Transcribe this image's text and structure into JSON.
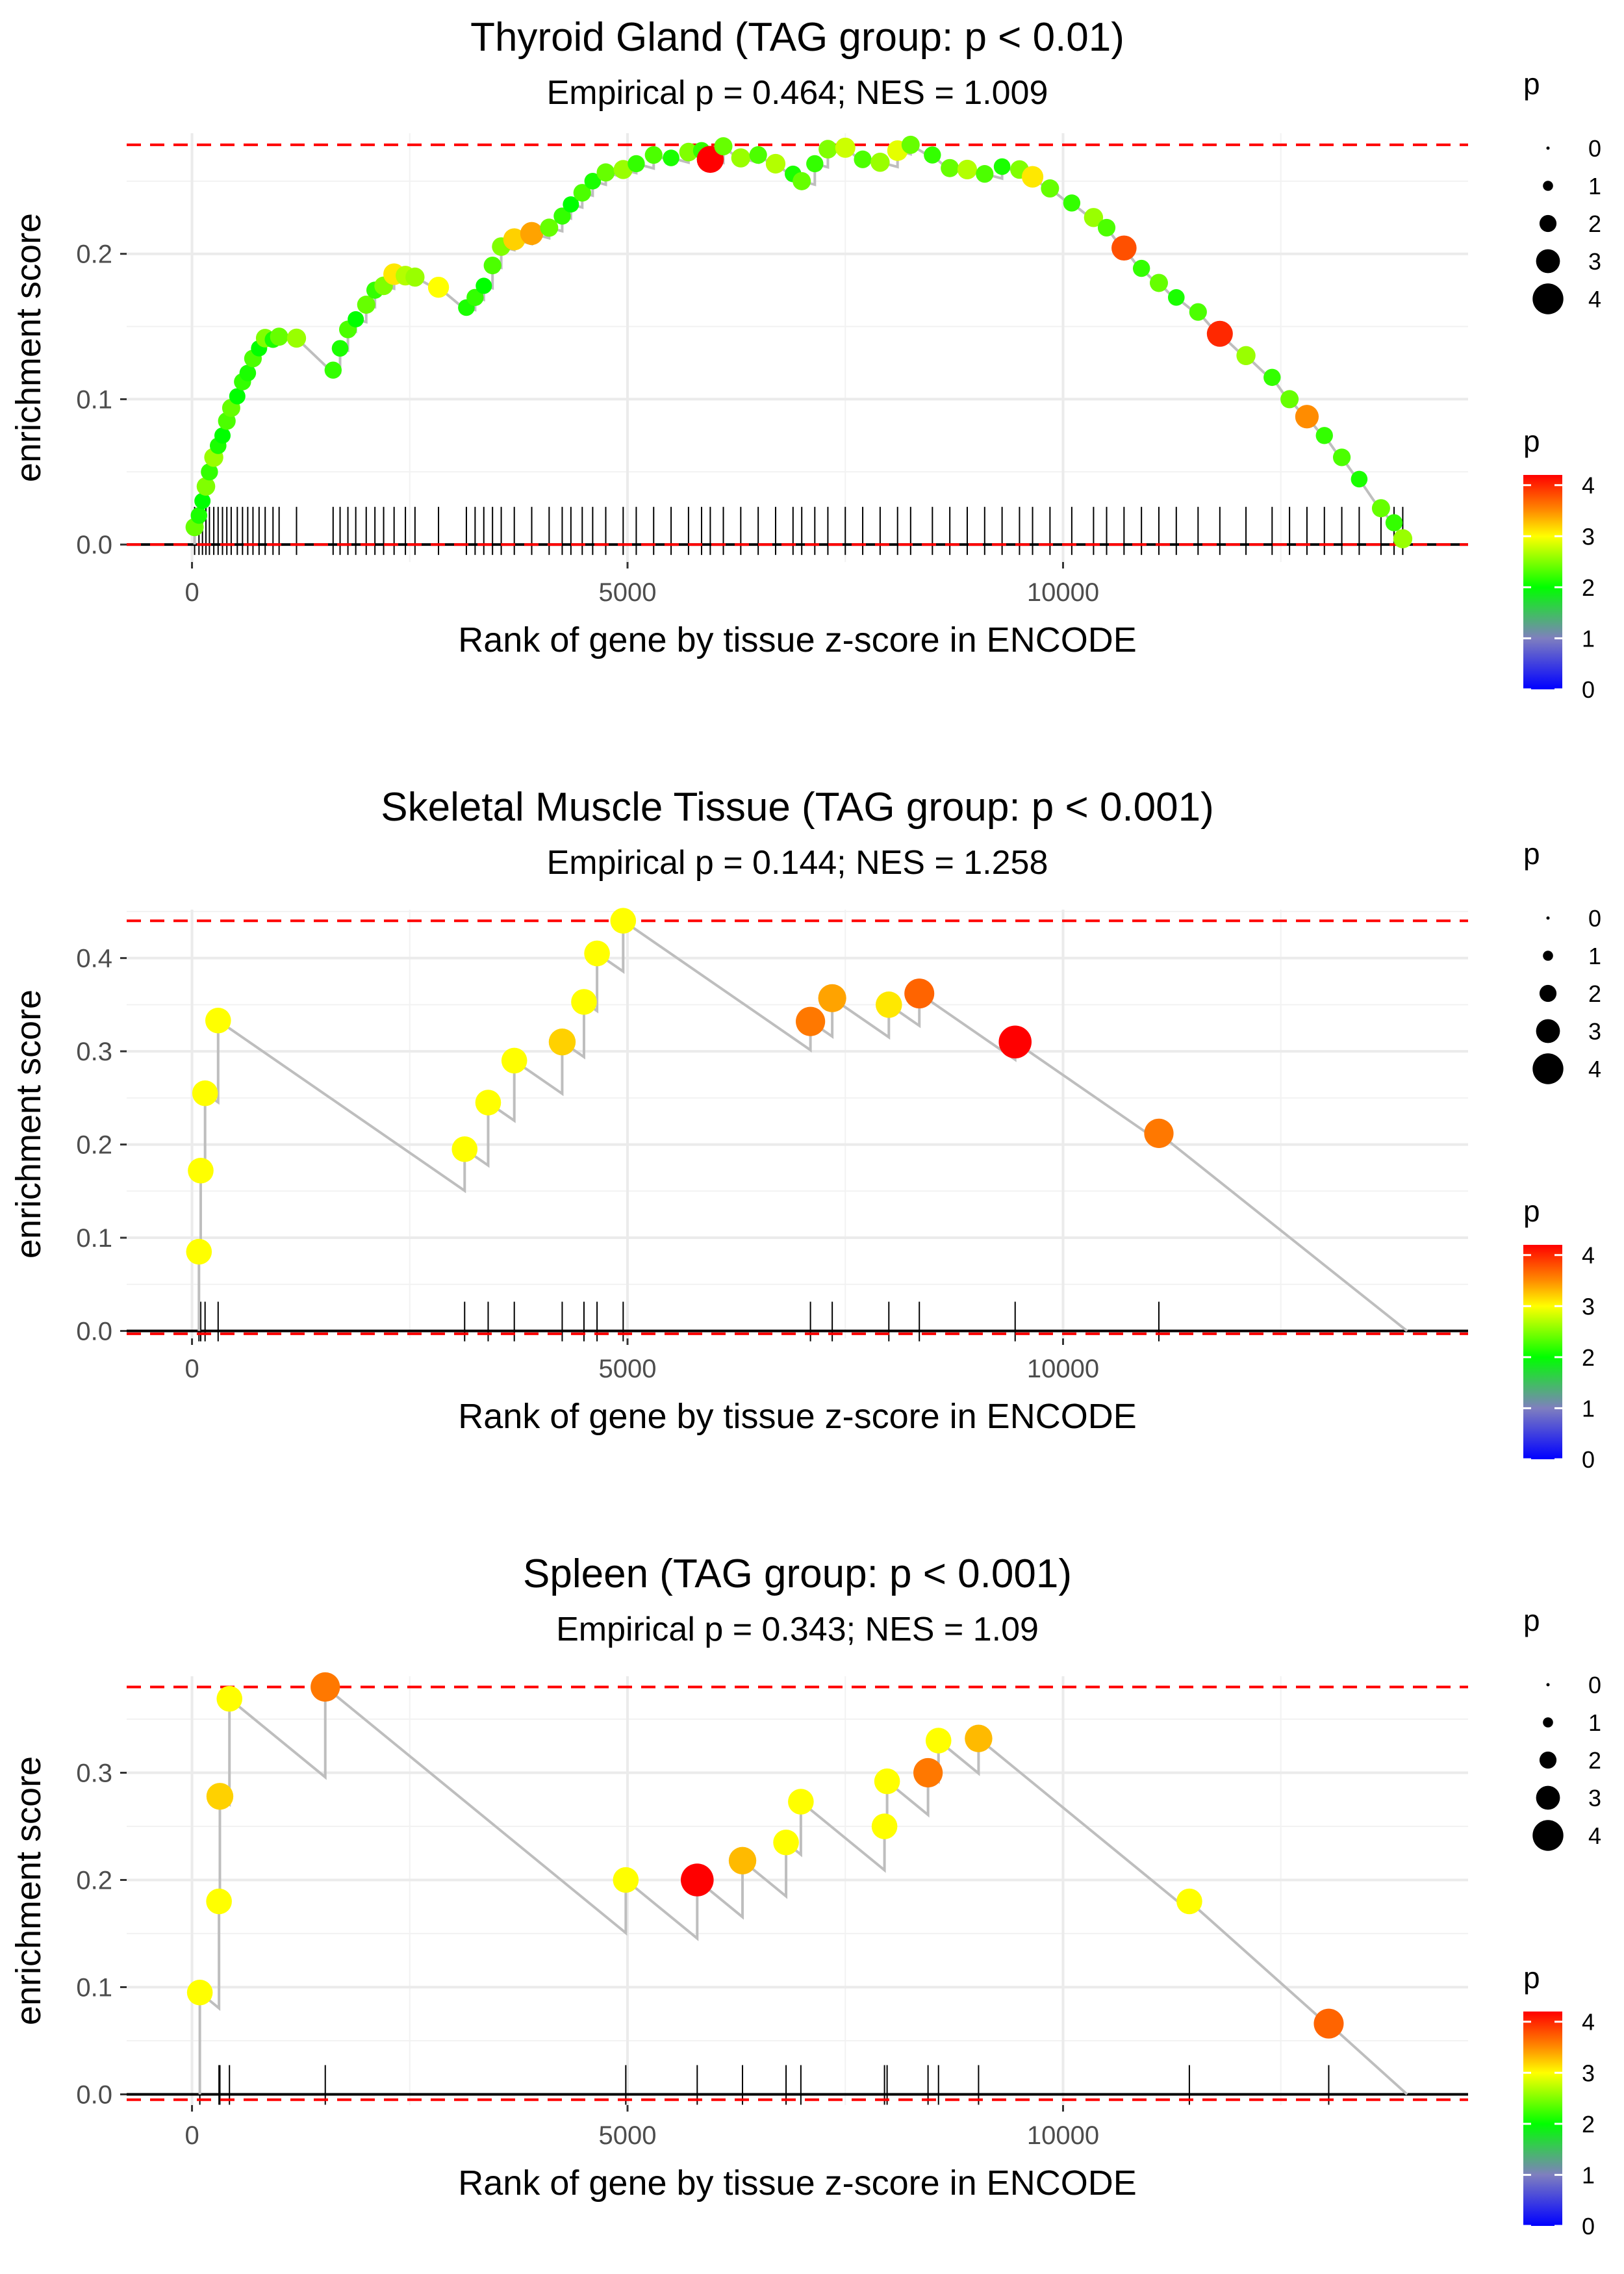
{
  "chart_data": [
    {
      "type": "scatter",
      "title": "Thyroid Gland (TAG group: p < 0.01)",
      "subtitle": "Empirical p = 0.464; NES = 1.009",
      "xlabel": "Rank of gene by tissue z-score in ENCODE",
      "ylabel": "enrichment score",
      "xlim": [
        -750,
        14650
      ],
      "ylim": [
        -0.012,
        0.283
      ],
      "xticks": [
        0,
        5000,
        10000
      ],
      "xtick_labels": [
        "0",
        "5000",
        "10000"
      ],
      "yticks": [
        0.0,
        0.1,
        0.2
      ],
      "ytick_labels": [
        "0.0",
        "0.1",
        "0.2"
      ],
      "max_es_line": 0.275,
      "min_es_line": 0.0,
      "last_rank": 13900,
      "legend_size": {
        "title": "p",
        "labels": [
          "0",
          "1",
          "2",
          "3",
          "4"
        ]
      },
      "legend_color": {
        "title": "p",
        "labels": [
          "4",
          "3",
          "2",
          "1",
          "0"
        ],
        "colors": [
          "#0000ff",
          "#7f7fbf",
          "#00ff00",
          "#ffff00",
          "#ff8000",
          "#ff0000"
        ]
      },
      "points": [
        {
          "x": 30,
          "y": 0.012,
          "p": 2.4
        },
        {
          "x": 80,
          "y": 0.02,
          "p": 2.1
        },
        {
          "x": 120,
          "y": 0.03,
          "p": 2.0
        },
        {
          "x": 160,
          "y": 0.04,
          "p": 2.5
        },
        {
          "x": 200,
          "y": 0.05,
          "p": 2.2
        },
        {
          "x": 250,
          "y": 0.06,
          "p": 2.6
        },
        {
          "x": 300,
          "y": 0.068,
          "p": 2.1
        },
        {
          "x": 350,
          "y": 0.075,
          "p": 2.0
        },
        {
          "x": 400,
          "y": 0.085,
          "p": 2.3
        },
        {
          "x": 450,
          "y": 0.094,
          "p": 2.4
        },
        {
          "x": 520,
          "y": 0.102,
          "p": 2.0
        },
        {
          "x": 580,
          "y": 0.112,
          "p": 2.2
        },
        {
          "x": 640,
          "y": 0.118,
          "p": 2.1
        },
        {
          "x": 700,
          "y": 0.128,
          "p": 2.3
        },
        {
          "x": 770,
          "y": 0.135,
          "p": 2.0
        },
        {
          "x": 840,
          "y": 0.142,
          "p": 2.5
        },
        {
          "x": 930,
          "y": 0.141,
          "p": 2.1
        },
        {
          "x": 1000,
          "y": 0.143,
          "p": 2.4
        },
        {
          "x": 1200,
          "y": 0.142,
          "p": 2.6
        },
        {
          "x": 1620,
          "y": 0.12,
          "p": 2.2
        },
        {
          "x": 1700,
          "y": 0.135,
          "p": 2.1
        },
        {
          "x": 1790,
          "y": 0.148,
          "p": 2.3
        },
        {
          "x": 1880,
          "y": 0.155,
          "p": 2.0
        },
        {
          "x": 2000,
          "y": 0.165,
          "p": 2.4
        },
        {
          "x": 2100,
          "y": 0.175,
          "p": 2.2
        },
        {
          "x": 2200,
          "y": 0.178,
          "p": 2.5
        },
        {
          "x": 2320,
          "y": 0.186,
          "p": 3.1
        },
        {
          "x": 2450,
          "y": 0.185,
          "p": 2.7
        },
        {
          "x": 2560,
          "y": 0.184,
          "p": 2.6
        },
        {
          "x": 2830,
          "y": 0.177,
          "p": 3.0
        },
        {
          "x": 3150,
          "y": 0.163,
          "p": 2.1
        },
        {
          "x": 3250,
          "y": 0.17,
          "p": 2.2
        },
        {
          "x": 3350,
          "y": 0.178,
          "p": 2.0
        },
        {
          "x": 3450,
          "y": 0.192,
          "p": 2.3
        },
        {
          "x": 3550,
          "y": 0.205,
          "p": 2.5
        },
        {
          "x": 3700,
          "y": 0.21,
          "p": 3.2
        },
        {
          "x": 3900,
          "y": 0.214,
          "p": 3.4
        },
        {
          "x": 4100,
          "y": 0.218,
          "p": 2.4
        },
        {
          "x": 4250,
          "y": 0.226,
          "p": 2.2
        },
        {
          "x": 4350,
          "y": 0.234,
          "p": 2.0
        },
        {
          "x": 4480,
          "y": 0.242,
          "p": 2.3
        },
        {
          "x": 4600,
          "y": 0.25,
          "p": 2.1
        },
        {
          "x": 4750,
          "y": 0.256,
          "p": 2.4
        },
        {
          "x": 4950,
          "y": 0.258,
          "p": 2.6
        },
        {
          "x": 5100,
          "y": 0.262,
          "p": 2.2
        },
        {
          "x": 5300,
          "y": 0.268,
          "p": 2.3
        },
        {
          "x": 5500,
          "y": 0.266,
          "p": 2.1
        },
        {
          "x": 5700,
          "y": 0.27,
          "p": 2.5
        },
        {
          "x": 5850,
          "y": 0.271,
          "p": 2.2
        },
        {
          "x": 5950,
          "y": 0.265,
          "p": 4.2
        },
        {
          "x": 6100,
          "y": 0.274,
          "p": 2.4
        },
        {
          "x": 6300,
          "y": 0.266,
          "p": 2.6
        },
        {
          "x": 6500,
          "y": 0.268,
          "p": 2.3
        },
        {
          "x": 6700,
          "y": 0.262,
          "p": 2.7
        },
        {
          "x": 6900,
          "y": 0.255,
          "p": 2.1
        },
        {
          "x": 7000,
          "y": 0.25,
          "p": 2.4
        },
        {
          "x": 7150,
          "y": 0.262,
          "p": 2.2
        },
        {
          "x": 7300,
          "y": 0.272,
          "p": 2.5
        },
        {
          "x": 7500,
          "y": 0.273,
          "p": 2.8
        },
        {
          "x": 7700,
          "y": 0.265,
          "p": 2.3
        },
        {
          "x": 7900,
          "y": 0.263,
          "p": 2.6
        },
        {
          "x": 8100,
          "y": 0.271,
          "p": 2.9
        },
        {
          "x": 8250,
          "y": 0.275,
          "p": 2.4
        },
        {
          "x": 8500,
          "y": 0.268,
          "p": 2.2
        },
        {
          "x": 8700,
          "y": 0.259,
          "p": 2.4
        },
        {
          "x": 8900,
          "y": 0.258,
          "p": 2.7
        },
        {
          "x": 9100,
          "y": 0.255,
          "p": 2.3
        },
        {
          "x": 9300,
          "y": 0.26,
          "p": 2.1
        },
        {
          "x": 9500,
          "y": 0.258,
          "p": 2.5
        },
        {
          "x": 9650,
          "y": 0.253,
          "p": 3.1
        },
        {
          "x": 9850,
          "y": 0.245,
          "p": 2.4
        },
        {
          "x": 10100,
          "y": 0.235,
          "p": 2.2
        },
        {
          "x": 10350,
          "y": 0.225,
          "p": 2.6
        },
        {
          "x": 10500,
          "y": 0.218,
          "p": 2.3
        },
        {
          "x": 10700,
          "y": 0.204,
          "p": 3.8
        },
        {
          "x": 10900,
          "y": 0.19,
          "p": 2.2
        },
        {
          "x": 11100,
          "y": 0.18,
          "p": 2.4
        },
        {
          "x": 11300,
          "y": 0.17,
          "p": 2.1
        },
        {
          "x": 11550,
          "y": 0.16,
          "p": 2.3
        },
        {
          "x": 11800,
          "y": 0.145,
          "p": 4.0
        },
        {
          "x": 12100,
          "y": 0.13,
          "p": 2.6
        },
        {
          "x": 12400,
          "y": 0.115,
          "p": 2.2
        },
        {
          "x": 12600,
          "y": 0.1,
          "p": 2.4
        },
        {
          "x": 12800,
          "y": 0.088,
          "p": 3.5
        },
        {
          "x": 13000,
          "y": 0.075,
          "p": 2.2
        },
        {
          "x": 13200,
          "y": 0.06,
          "p": 2.3
        },
        {
          "x": 13400,
          "y": 0.045,
          "p": 2.1
        },
        {
          "x": 13650,
          "y": 0.025,
          "p": 2.4
        },
        {
          "x": 13800,
          "y": 0.015,
          "p": 2.2
        },
        {
          "x": 13900,
          "y": 0.004,
          "p": 2.6
        }
      ]
    },
    {
      "type": "scatter",
      "title": "Skeletal Muscle Tissue (TAG group: p < 0.001)",
      "subtitle": "Empirical p = 0.144; NES = 1.258",
      "xlabel": "Rank of gene by tissue z-score in ENCODE",
      "ylabel": "enrichment score",
      "xlim": [
        -750,
        14650
      ],
      "ylim": [
        -0.008,
        0.452
      ],
      "xticks": [
        0,
        5000,
        10000
      ],
      "xtick_labels": [
        "0",
        "5000",
        "10000"
      ],
      "yticks": [
        0.0,
        0.1,
        0.2,
        0.3,
        0.4
      ],
      "ytick_labels": [
        "0.0",
        "0.1",
        "0.2",
        "0.3",
        "0.4"
      ],
      "max_es_line": 0.44,
      "min_es_line": -0.003,
      "last_rank": 13950,
      "legend_size": {
        "title": "p",
        "labels": [
          "0",
          "1",
          "2",
          "3",
          "4"
        ]
      },
      "legend_color": {
        "title": "p",
        "labels": [
          "4",
          "3",
          "2",
          "1",
          "0"
        ],
        "colors": [
          "#0000ff",
          "#7f7fbf",
          "#00ff00",
          "#ffff00",
          "#ff8000",
          "#ff0000"
        ]
      },
      "points": [
        {
          "x": 80,
          "y": 0.085,
          "p": 3.0
        },
        {
          "x": 100,
          "y": 0.172,
          "p": 3.0
        },
        {
          "x": 150,
          "y": 0.255,
          "p": 3.0
        },
        {
          "x": 300,
          "y": 0.333,
          "p": 3.0
        },
        {
          "x": 3130,
          "y": 0.195,
          "p": 3.0
        },
        {
          "x": 3400,
          "y": 0.245,
          "p": 3.0
        },
        {
          "x": 3700,
          "y": 0.29,
          "p": 3.0
        },
        {
          "x": 4250,
          "y": 0.31,
          "p": 3.2
        },
        {
          "x": 4500,
          "y": 0.353,
          "p": 3.0
        },
        {
          "x": 4650,
          "y": 0.405,
          "p": 3.0
        },
        {
          "x": 4950,
          "y": 0.44,
          "p": 3.0
        },
        {
          "x": 7100,
          "y": 0.332,
          "p": 3.6
        },
        {
          "x": 7350,
          "y": 0.357,
          "p": 3.4
        },
        {
          "x": 8000,
          "y": 0.35,
          "p": 3.1
        },
        {
          "x": 8350,
          "y": 0.362,
          "p": 3.7
        },
        {
          "x": 9450,
          "y": 0.31,
          "p": 4.2
        },
        {
          "x": 11100,
          "y": 0.212,
          "p": 3.6
        }
      ]
    },
    {
      "type": "scatter",
      "title": "Spleen (TAG group: p < 0.001)",
      "subtitle": "Empirical p = 0.343; NES = 1.09",
      "xlabel": "Rank of gene by tissue z-score in ENCODE",
      "ylabel": "enrichment score",
      "xlim": [
        -750,
        14650
      ],
      "ylim": [
        -0.01,
        0.39
      ],
      "xticks": [
        0,
        5000,
        10000
      ],
      "xtick_labels": [
        "0",
        "5000",
        "10000"
      ],
      "yticks": [
        0.0,
        0.1,
        0.2,
        0.3
      ],
      "ytick_labels": [
        "0.0",
        "0.1",
        "0.2",
        "0.3"
      ],
      "max_es_line": 0.38,
      "min_es_line": -0.005,
      "last_rank": 13950,
      "legend_size": {
        "title": "p",
        "labels": [
          "0",
          "1",
          "2",
          "3",
          "4"
        ]
      },
      "legend_color": {
        "title": "p",
        "labels": [
          "4",
          "3",
          "2",
          "1",
          "0"
        ],
        "colors": [
          "#0000ff",
          "#7f7fbf",
          "#00ff00",
          "#ffff00",
          "#ff8000",
          "#ff0000"
        ]
      },
      "points": [
        {
          "x": 90,
          "y": 0.095,
          "p": 3.0
        },
        {
          "x": 310,
          "y": 0.18,
          "p": 3.0
        },
        {
          "x": 320,
          "y": 0.278,
          "p": 3.2
        },
        {
          "x": 430,
          "y": 0.369,
          "p": 3.0
        },
        {
          "x": 1530,
          "y": 0.38,
          "p": 3.6
        },
        {
          "x": 4980,
          "y": 0.2,
          "p": 3.0
        },
        {
          "x": 5800,
          "y": 0.2,
          "p": 4.2
        },
        {
          "x": 6320,
          "y": 0.218,
          "p": 3.3
        },
        {
          "x": 6820,
          "y": 0.235,
          "p": 3.0
        },
        {
          "x": 6990,
          "y": 0.273,
          "p": 3.0
        },
        {
          "x": 7950,
          "y": 0.25,
          "p": 3.0
        },
        {
          "x": 7980,
          "y": 0.292,
          "p": 3.0
        },
        {
          "x": 8450,
          "y": 0.3,
          "p": 3.6
        },
        {
          "x": 8570,
          "y": 0.33,
          "p": 3.0
        },
        {
          "x": 9030,
          "y": 0.332,
          "p": 3.3
        },
        {
          "x": 11450,
          "y": 0.18,
          "p": 3.0
        },
        {
          "x": 13050,
          "y": 0.066,
          "p": 3.7
        }
      ]
    }
  ]
}
